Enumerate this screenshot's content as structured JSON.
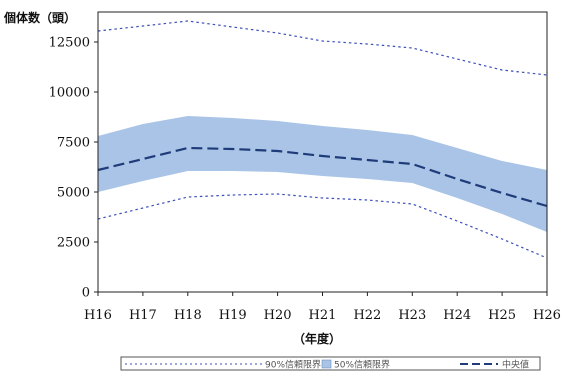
{
  "chart_data": {
    "type": "line",
    "ylabel": "個体数（頭）",
    "xlabel": "（年度）",
    "categories": [
      "H16",
      "H17",
      "H18",
      "H19",
      "H20",
      "H21",
      "H22",
      "H23",
      "H24",
      "H25",
      "H26"
    ],
    "ylim": [
      0,
      14000
    ],
    "yticks": [
      0,
      2500,
      5000,
      7500,
      10000,
      12500
    ],
    "grid": false,
    "legend_position": "bottom-right",
    "band_50": {
      "name": "50%信頼限界",
      "color": "#a9c4e6",
      "lower": [
        5000,
        5550,
        6050,
        6050,
        6000,
        5800,
        5650,
        5450,
        4700,
        3900,
        3000
      ],
      "upper": [
        7800,
        8400,
        8800,
        8700,
        8550,
        8300,
        8100,
        7850,
        7200,
        6550,
        6100
      ]
    },
    "series": [
      {
        "name": "90%信頼限界",
        "style": "dotted",
        "color": "#3b4fb8",
        "upper": [
          13050,
          13300,
          13550,
          13250,
          12950,
          12550,
          12400,
          12200,
          11650,
          11100,
          10850
        ],
        "lower": [
          3650,
          4200,
          4750,
          4850,
          4900,
          4700,
          4600,
          4400,
          3550,
          2650,
          1700
        ]
      },
      {
        "name": "中央値",
        "style": "dashed",
        "color": "#1f3b7a",
        "values": [
          6100,
          6650,
          7200,
          7150,
          7050,
          6800,
          6600,
          6400,
          5650,
          4950,
          4300
        ]
      }
    ]
  }
}
